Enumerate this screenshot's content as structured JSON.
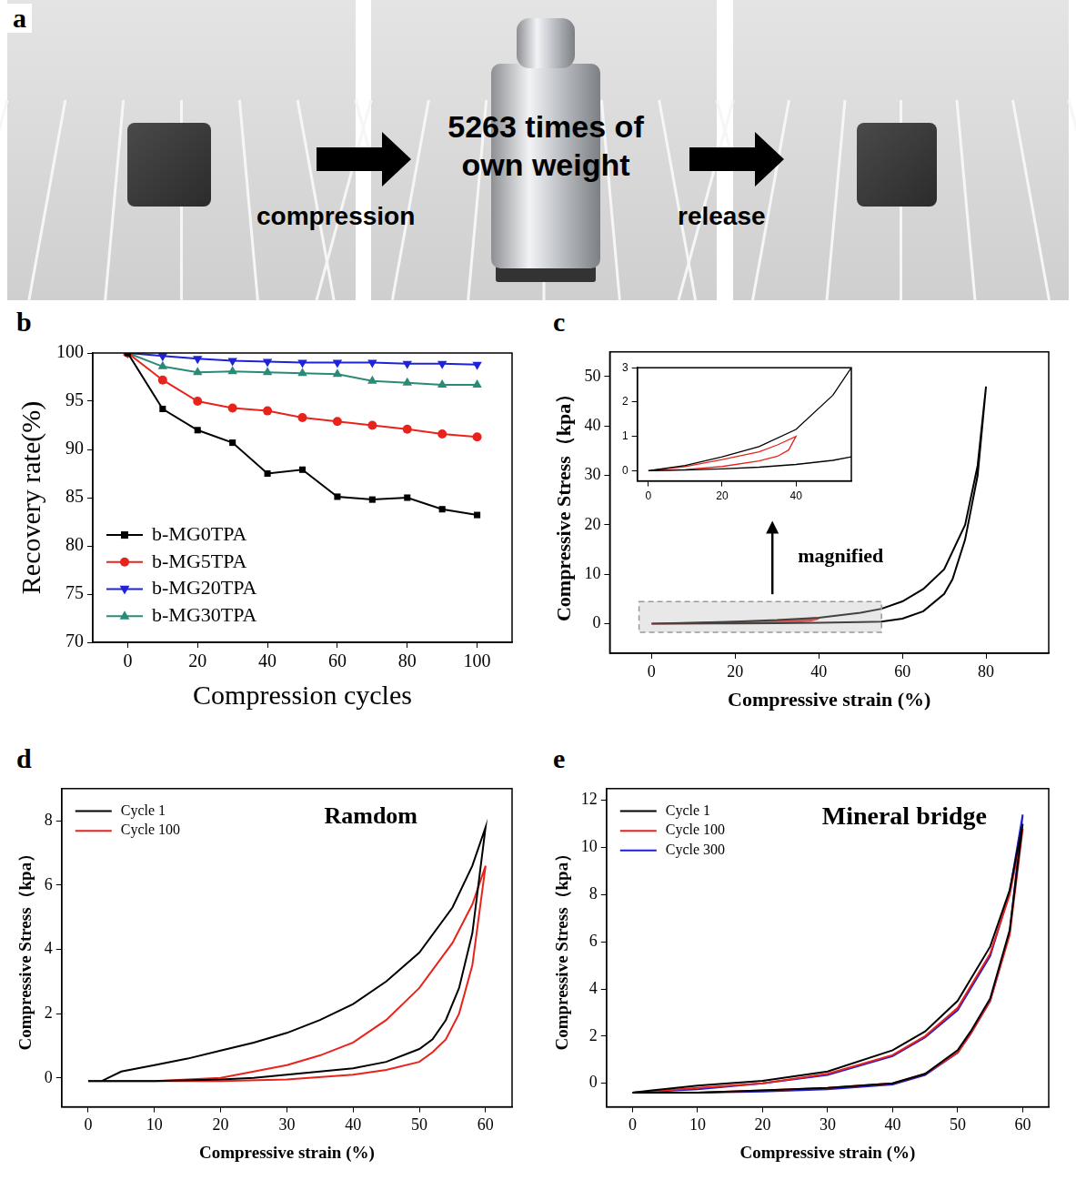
{
  "panel_a": {
    "panel": "a",
    "load_text": "5263 times of own weight",
    "arrow_labels": [
      "compression",
      "release"
    ]
  },
  "chart_data": [
    {
      "panel": "b",
      "type": "line",
      "x": [
        0,
        10,
        20,
        30,
        40,
        50,
        60,
        70,
        80,
        90,
        100
      ],
      "x_label": "Compression cycles",
      "y_label": "Recovery rate(%)",
      "xlim": [
        -10,
        110
      ],
      "xticks": [
        0,
        20,
        40,
        60,
        80,
        100
      ],
      "ylim": [
        70,
        100
      ],
      "yticks": [
        70,
        75,
        80,
        85,
        90,
        95,
        100
      ],
      "grid": false,
      "legend": "lower left",
      "series": [
        {
          "name": "b-MG0TPA",
          "color": "#000000",
          "marker": "square",
          "line_style": "solid",
          "values": [
            100,
            94.2,
            92,
            90.7,
            87.5,
            87.9,
            85.1,
            84.8,
            85,
            83.8,
            83.2
          ]
        },
        {
          "name": "b-MG5TPA",
          "color": "#e8231c",
          "marker": "circle",
          "line_style": "solid",
          "values": [
            100,
            97.2,
            95,
            94.3,
            94,
            93.3,
            92.9,
            92.5,
            92.1,
            91.6,
            91.3
          ]
        },
        {
          "name": "b-MG20TPA",
          "color": "#1e22d8",
          "marker": "triangle_down",
          "line_style": "solid",
          "values": [
            100,
            99.7,
            99.4,
            99.2,
            99.1,
            99,
            99,
            99,
            98.9,
            98.9,
            98.8
          ]
        },
        {
          "name": "b-MG30TPA",
          "color": "#2a8a78",
          "marker": "triangle_up",
          "line_style": "solid",
          "values": [
            100,
            98.6,
            98,
            98.1,
            98,
            97.9,
            97.8,
            97.1,
            96.9,
            96.7,
            96.7
          ]
        }
      ]
    },
    {
      "panel": "c",
      "type": "line",
      "x_label": "Compressive strain (%)",
      "y_label": "Compressive Stress（kpa）",
      "xlim": [
        -10,
        95
      ],
      "xticks": [
        0,
        20,
        40,
        60,
        80
      ],
      "ylim": [
        -6,
        55
      ],
      "yticks": [
        0,
        10,
        20,
        30,
        40,
        50
      ],
      "grid": false,
      "annotations": [
        "magnified"
      ],
      "series": [
        {
          "color": "#000000",
          "marker": "none",
          "line_style": "solid",
          "x": [
            0,
            10,
            20,
            30,
            40,
            50,
            55,
            60,
            65,
            70,
            75,
            78,
            80,
            78,
            75,
            72,
            70,
            65,
            60,
            55,
            50,
            40,
            30,
            20,
            10,
            0
          ],
          "values": [
            0,
            0.15,
            0.4,
            0.7,
            1.2,
            2.2,
            3,
            4.5,
            7,
            11,
            20,
            32,
            48,
            30,
            17,
            9,
            6,
            2.5,
            1,
            0.4,
            0.3,
            0.18,
            0.1,
            0.05,
            0.02,
            0
          ]
        },
        {
          "color": "#e8231c",
          "marker": "none",
          "line_style": "solid",
          "x": [
            0,
            10,
            20,
            30,
            35,
            40,
            38,
            35,
            30,
            20,
            10,
            0
          ],
          "values": [
            0,
            0.12,
            0.32,
            0.55,
            0.75,
            1.0,
            0.6,
            0.42,
            0.28,
            0.12,
            0.03,
            0
          ]
        }
      ],
      "inset": {
        "xlim": [
          -3,
          55
        ],
        "xticks": [
          0,
          20,
          40
        ],
        "ylim": [
          -0.3,
          3
        ],
        "yticks": [
          0,
          1,
          2,
          3
        ]
      }
    },
    {
      "panel": "d",
      "type": "line",
      "title": "Ramdom",
      "x_label": "Compressive strain (%)",
      "y_label": "Compressive Stress（kpa）",
      "xlim": [
        -4,
        64
      ],
      "xticks": [
        0,
        10,
        20,
        30,
        40,
        50,
        60
      ],
      "ylim": [
        -0.9,
        9
      ],
      "yticks": [
        0,
        2,
        4,
        6,
        8
      ],
      "grid": false,
      "legend": "upper left",
      "series": [
        {
          "name": "Cycle 1",
          "color": "#000000",
          "marker": "none",
          "line_style": "solid",
          "x": [
            0,
            2,
            5,
            10,
            15,
            20,
            25,
            30,
            35,
            40,
            45,
            50,
            55,
            58,
            60,
            58,
            56,
            54,
            52,
            50,
            45,
            40,
            35,
            30,
            25,
            20,
            10,
            0
          ],
          "values": [
            -0.1,
            -0.1,
            0.2,
            0.4,
            0.6,
            0.85,
            1.1,
            1.4,
            1.8,
            2.3,
            3.0,
            3.9,
            5.3,
            6.6,
            7.8,
            4.5,
            2.8,
            1.8,
            1.2,
            0.9,
            0.5,
            0.3,
            0.2,
            0.1,
            0,
            -0.05,
            -0.1,
            -0.1
          ]
        },
        {
          "name": "Cycle 100",
          "color": "#e8231c",
          "marker": "none",
          "line_style": "solid",
          "x": [
            0,
            10,
            20,
            25,
            30,
            35,
            40,
            45,
            50,
            55,
            58,
            60,
            58,
            56,
            54,
            52,
            50,
            45,
            40,
            30,
            20,
            10,
            0
          ],
          "values": [
            -0.1,
            -0.1,
            0,
            0.2,
            0.4,
            0.7,
            1.1,
            1.8,
            2.8,
            4.2,
            5.4,
            6.6,
            3.5,
            2,
            1.2,
            0.8,
            0.5,
            0.25,
            0.1,
            -0.05,
            -0.1,
            -0.1,
            -0.1
          ]
        }
      ]
    },
    {
      "panel": "e",
      "type": "line",
      "title": "Mineral bridge",
      "x_label": "Compressive strain (%)",
      "y_label": "Compressive Stress（kpa）",
      "xlim": [
        -4,
        64
      ],
      "xticks": [
        0,
        10,
        20,
        30,
        40,
        50,
        60
      ],
      "ylim": [
        -1,
        12.5
      ],
      "yticks": [
        0,
        2,
        4,
        6,
        8,
        10,
        12
      ],
      "grid": false,
      "legend": "upper left",
      "series": [
        {
          "name": "Cycle 1",
          "color": "#000000",
          "marker": "none",
          "line_style": "solid",
          "x": [
            0,
            3,
            10,
            20,
            30,
            40,
            45,
            50,
            55,
            58,
            60,
            58,
            55,
            52,
            50,
            45,
            40,
            30,
            20,
            10,
            0
          ],
          "values": [
            -0.4,
            -0.3,
            -0.1,
            0.1,
            0.5,
            1.4,
            2.2,
            3.5,
            5.8,
            8.2,
            11,
            6.5,
            3.6,
            2.2,
            1.4,
            0.4,
            0,
            -0.2,
            -0.3,
            -0.4,
            -0.4
          ]
        },
        {
          "name": "Cycle 100",
          "color": "#e8231c",
          "marker": "none",
          "line_style": "solid",
          "x": [
            0,
            10,
            20,
            30,
            40,
            45,
            50,
            55,
            58,
            60,
            58,
            55,
            52,
            50,
            45,
            40,
            30,
            20,
            10,
            0
          ],
          "values": [
            -0.4,
            -0.2,
            0,
            0.4,
            1.2,
            2,
            3.2,
            5.5,
            8,
            10.8,
            6.3,
            3.5,
            2.1,
            1.3,
            0.4,
            0,
            -0.2,
            -0.3,
            -0.4,
            -0.4
          ]
        },
        {
          "name": "Cycle 300",
          "color": "#1f1fcf",
          "marker": "none",
          "line_style": "solid",
          "x": [
            0,
            10,
            20,
            30,
            40,
            45,
            50,
            55,
            58,
            60,
            58,
            55,
            52,
            50,
            45,
            40,
            30,
            20,
            10,
            0
          ],
          "values": [
            -0.4,
            -0.25,
            0,
            0.35,
            1.15,
            1.95,
            3.1,
            5.4,
            8.1,
            11.4,
            6.4,
            3.5,
            2.1,
            1.3,
            0.35,
            -0.05,
            -0.25,
            -0.35,
            -0.4,
            -0.4
          ]
        }
      ]
    }
  ]
}
